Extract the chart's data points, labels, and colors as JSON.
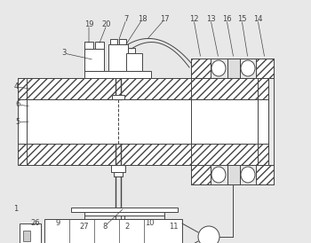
{
  "bg_color": "#e8e8e8",
  "line_color": "#444444",
  "figsize": [
    3.5,
    2.74
  ],
  "dpi": 100,
  "label_fontsize": 6.0,
  "lw": 0.7
}
